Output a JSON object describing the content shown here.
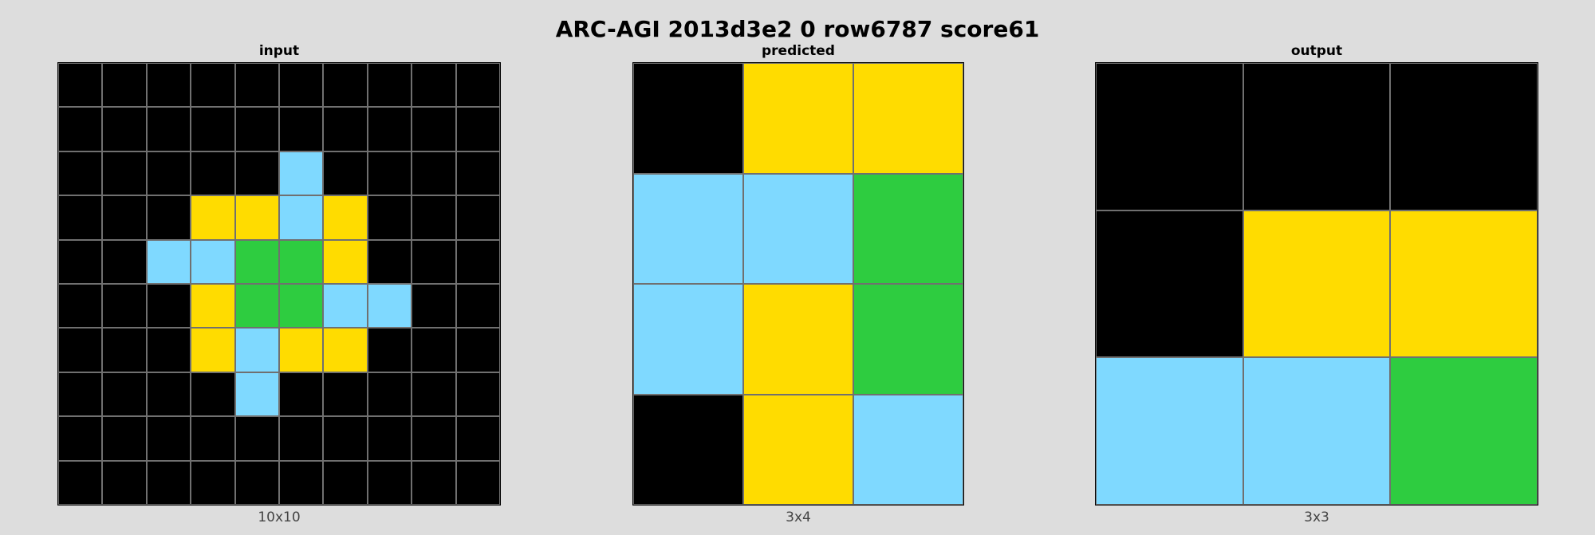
{
  "title": "ARC-AGI 2013d3e2 0 row6787 score61",
  "palette": {
    "0": "#000000",
    "1": "#7fd9ff",
    "2": "#2ecc40",
    "3": "#ffdc00"
  },
  "panels": [
    {
      "label": "input",
      "dims": "10x10",
      "grid": [
        [
          0,
          0,
          0,
          0,
          0,
          0,
          0,
          0,
          0,
          0
        ],
        [
          0,
          0,
          0,
          0,
          0,
          0,
          0,
          0,
          0,
          0
        ],
        [
          0,
          0,
          0,
          0,
          0,
          1,
          0,
          0,
          0,
          0
        ],
        [
          0,
          0,
          0,
          3,
          3,
          1,
          3,
          0,
          0,
          0
        ],
        [
          0,
          0,
          1,
          1,
          2,
          2,
          3,
          0,
          0,
          0
        ],
        [
          0,
          0,
          0,
          3,
          2,
          2,
          1,
          1,
          0,
          0
        ],
        [
          0,
          0,
          0,
          3,
          1,
          3,
          3,
          0,
          0,
          0
        ],
        [
          0,
          0,
          0,
          0,
          1,
          0,
          0,
          0,
          0,
          0
        ],
        [
          0,
          0,
          0,
          0,
          0,
          0,
          0,
          0,
          0,
          0
        ],
        [
          0,
          0,
          0,
          0,
          0,
          0,
          0,
          0,
          0,
          0
        ]
      ]
    },
    {
      "label": "predicted",
      "dims": "3x4",
      "grid": [
        [
          0,
          3,
          3
        ],
        [
          1,
          1,
          2
        ],
        [
          1,
          3,
          2
        ],
        [
          0,
          3,
          1
        ]
      ]
    },
    {
      "label": "output",
      "dims": "3x3",
      "grid": [
        [
          0,
          0,
          0
        ],
        [
          0,
          3,
          3
        ],
        [
          1,
          1,
          2
        ]
      ]
    }
  ]
}
